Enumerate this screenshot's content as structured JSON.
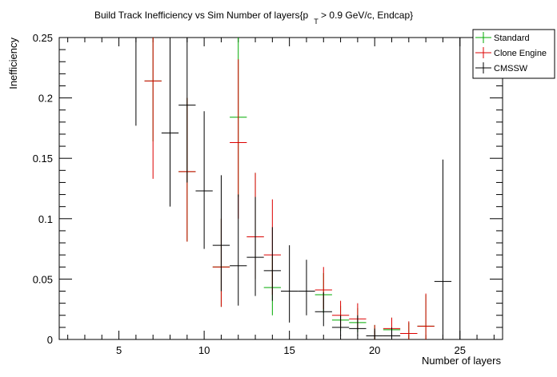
{
  "chart_data": {
    "type": "scatter",
    "title": "Build Track Inefficiency vs Sim Number of layers{p_T > 0.9 GeV/c, Endcap}",
    "title_parts": {
      "main": "Build Track Inefficiency vs Sim Number of layers{p",
      "subscript": "T",
      "rest": " > 0.9 GeV/c, Endcap}"
    },
    "xlabel": "Number of layers",
    "ylabel": "Inefficiency",
    "xlim": [
      1.5,
      27.5
    ],
    "ylim": [
      0,
      0.25
    ],
    "x_ticks": [
      5,
      10,
      15,
      20,
      25
    ],
    "x_tick_labels": [
      "5",
      "10",
      "15",
      "20",
      "25"
    ],
    "y_ticks": [
      0,
      0.05,
      0.1,
      0.15,
      0.2,
      0.25
    ],
    "y_tick_labels": [
      "0",
      "0.05",
      "0.1",
      "0.15",
      "0.2",
      "0.25"
    ],
    "grid": false,
    "legend_position": "top-right",
    "series": [
      {
        "name": "Standard",
        "color": "#00aa00",
        "points": [
          {
            "x": 7,
            "y": 0.214,
            "ylo": 0.164,
            "yhi": 0.25
          },
          {
            "x": 9,
            "y": 0.139,
            "ylo": 0.081,
            "yhi": 0.2
          },
          {
            "x": 11,
            "y": 0.06,
            "ylo": 0.027,
            "yhi": 0.1
          },
          {
            "x": 12,
            "y": 0.184,
            "ylo": 0.118,
            "yhi": 0.25
          },
          {
            "x": 13,
            "y": 0.085,
            "ylo": 0.05,
            "yhi": 0.138
          },
          {
            "x": 14,
            "y": 0.043,
            "ylo": 0.02,
            "yhi": 0.07
          },
          {
            "x": 17,
            "y": 0.037,
            "ylo": 0.022,
            "yhi": 0.055
          },
          {
            "x": 18,
            "y": 0.016,
            "ylo": 0.007,
            "yhi": 0.028
          },
          {
            "x": 19,
            "y": 0.014,
            "ylo": 0.006,
            "yhi": 0.026
          },
          {
            "x": 20,
            "y": 0.003,
            "ylo": 0.0,
            "yhi": 0.012
          },
          {
            "x": 21,
            "y": 0.008,
            "ylo": 0.0,
            "yhi": 0.018
          },
          {
            "x": 22,
            "y": 0.005,
            "ylo": 0.0,
            "yhi": 0.014
          },
          {
            "x": 23,
            "y": 0.011,
            "ylo": 0.0,
            "yhi": 0.037
          }
        ]
      },
      {
        "name": "Clone Engine",
        "color": "#dd0000",
        "points": [
          {
            "x": 7,
            "y": 0.214,
            "ylo": 0.133,
            "yhi": 0.25
          },
          {
            "x": 9,
            "y": 0.139,
            "ylo": 0.081,
            "yhi": 0.2
          },
          {
            "x": 11,
            "y": 0.06,
            "ylo": 0.027,
            "yhi": 0.1
          },
          {
            "x": 12,
            "y": 0.163,
            "ylo": 0.1,
            "yhi": 0.232
          },
          {
            "x": 13,
            "y": 0.085,
            "ylo": 0.05,
            "yhi": 0.138
          },
          {
            "x": 14,
            "y": 0.07,
            "ylo": 0.037,
            "yhi": 0.116
          },
          {
            "x": 17,
            "y": 0.041,
            "ylo": 0.025,
            "yhi": 0.06
          },
          {
            "x": 18,
            "y": 0.02,
            "ylo": 0.009,
            "yhi": 0.032
          },
          {
            "x": 19,
            "y": 0.017,
            "ylo": 0.008,
            "yhi": 0.03
          },
          {
            "x": 20,
            "y": 0.003,
            "ylo": 0.0,
            "yhi": 0.012
          },
          {
            "x": 21,
            "y": 0.009,
            "ylo": 0.0,
            "yhi": 0.018
          },
          {
            "x": 22,
            "y": 0.005,
            "ylo": 0.0,
            "yhi": 0.015
          },
          {
            "x": 23,
            "y": 0.011,
            "ylo": 0.0,
            "yhi": 0.038
          }
        ]
      },
      {
        "name": "CMSSW",
        "color": "#000000",
        "points": [
          {
            "x": 6,
            "y": 0.25,
            "ylo": 0.177,
            "yhi": 0.25
          },
          {
            "x": 8,
            "y": 0.171,
            "ylo": 0.11,
            "yhi": 0.25
          },
          {
            "x": 9,
            "y": 0.194,
            "ylo": 0.13,
            "yhi": 0.25
          },
          {
            "x": 10,
            "y": 0.123,
            "ylo": 0.075,
            "yhi": 0.189
          },
          {
            "x": 11,
            "y": 0.078,
            "ylo": 0.04,
            "yhi": 0.136
          },
          {
            "x": 12,
            "y": 0.061,
            "ylo": 0.028,
            "yhi": 0.12
          },
          {
            "x": 13,
            "y": 0.068,
            "ylo": 0.036,
            "yhi": 0.118
          },
          {
            "x": 14,
            "y": 0.057,
            "ylo": 0.032,
            "yhi": 0.093
          },
          {
            "x": 15,
            "y": 0.04,
            "ylo": 0.014,
            "yhi": 0.078
          },
          {
            "x": 16,
            "y": 0.04,
            "ylo": 0.02,
            "yhi": 0.066
          },
          {
            "x": 17,
            "y": 0.023,
            "ylo": 0.011,
            "yhi": 0.039
          },
          {
            "x": 18,
            "y": 0.01,
            "ylo": 0.003,
            "yhi": 0.02
          },
          {
            "x": 19,
            "y": 0.009,
            "ylo": 0.003,
            "yhi": 0.02
          },
          {
            "x": 20,
            "y": 0.003,
            "ylo": 0.0,
            "yhi": 0.009
          },
          {
            "x": 21,
            "y": 0.003,
            "ylo": 0.0,
            "yhi": 0.01
          },
          {
            "x": 24,
            "y": 0.048,
            "ylo": 0.0,
            "yhi": 0.149
          },
          {
            "x": 25,
            "y": 0.25,
            "ylo": 0.0,
            "yhi": 0.25
          }
        ]
      }
    ]
  }
}
